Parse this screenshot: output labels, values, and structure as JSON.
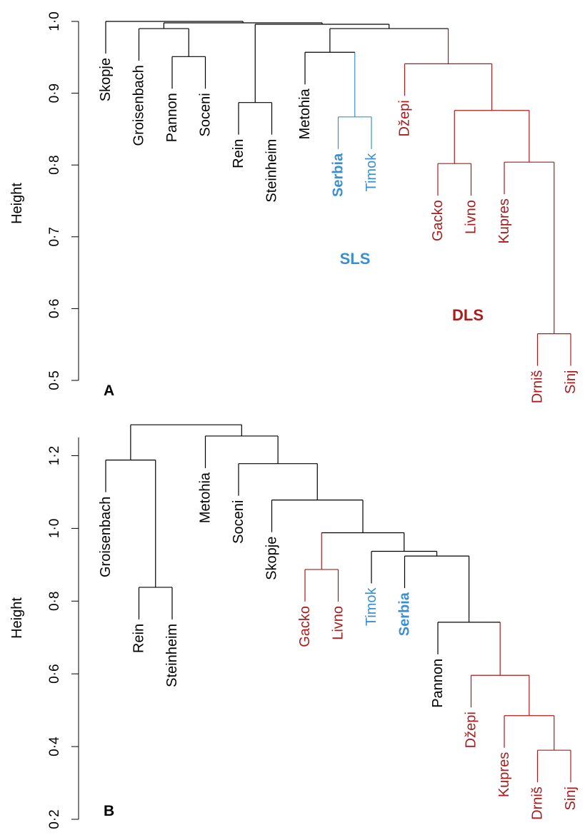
{
  "colors": {
    "default": "#000000",
    "SLS": "#3a8fd0",
    "DLS": "#a81c1c"
  },
  "chart_data": [
    {
      "type": "dendrogram",
      "panel_label": "A",
      "ylabel": "Height",
      "ylim": [
        0.45,
        1.0
      ],
      "yticks": [
        "0·5",
        "0·6",
        "0·7",
        "0·8",
        "0·9",
        "1·0"
      ],
      "ytick_values": [
        0.5,
        0.6,
        0.7,
        0.8,
        0.9,
        1.0
      ],
      "leaves": [
        {
          "name": "Skopje",
          "group": "default",
          "bold": false
        },
        {
          "name": "Groisenbach",
          "group": "default",
          "bold": false
        },
        {
          "name": "Pannon",
          "group": "default",
          "bold": false
        },
        {
          "name": "Soceni",
          "group": "default",
          "bold": false
        },
        {
          "name": "Rein",
          "group": "default",
          "bold": false
        },
        {
          "name": "Steinheim",
          "group": "default",
          "bold": false
        },
        {
          "name": "Metohia",
          "group": "default",
          "bold": false
        },
        {
          "name": "Serbia",
          "group": "SLS",
          "bold": true
        },
        {
          "name": "Timok",
          "group": "SLS",
          "bold": false
        },
        {
          "name": "Džepi",
          "group": "DLS",
          "bold": false
        },
        {
          "name": "Gacko",
          "group": "DLS",
          "bold": false
        },
        {
          "name": "Livno",
          "group": "DLS",
          "bold": false
        },
        {
          "name": "Kupres",
          "group": "DLS",
          "bold": false
        },
        {
          "name": "Drniš",
          "group": "DLS",
          "bold": false
        },
        {
          "name": "Sinj",
          "group": "DLS",
          "bold": false
        }
      ],
      "merges": [
        {
          "id": "a1",
          "children": [
            "Pannon",
            "Soceni"
          ],
          "height": 0.951,
          "group": "default"
        },
        {
          "id": "a2",
          "children": [
            "Groisenbach",
            "a1"
          ],
          "height": 0.99,
          "group": "default"
        },
        {
          "id": "a3",
          "children": [
            "Rein",
            "Steinheim"
          ],
          "height": 0.887,
          "group": "default"
        },
        {
          "id": "a4",
          "children": [
            "Serbia",
            "Timok"
          ],
          "height": 0.867,
          "group": "SLS"
        },
        {
          "id": "a5",
          "children": [
            "Metohia",
            "a4"
          ],
          "height": 0.957,
          "group": "default"
        },
        {
          "id": "a6",
          "children": [
            "Gacko",
            "Livno"
          ],
          "height": 0.802,
          "group": "DLS"
        },
        {
          "id": "a7",
          "children": [
            "Drniš",
            "Sinj"
          ],
          "height": 0.565,
          "group": "DLS"
        },
        {
          "id": "a8",
          "children": [
            "Kupres",
            "a7"
          ],
          "height": 0.804,
          "group": "DLS"
        },
        {
          "id": "a9",
          "children": [
            "a6",
            "a8"
          ],
          "height": 0.876,
          "group": "DLS"
        },
        {
          "id": "a10",
          "children": [
            "Džepi",
            "a9"
          ],
          "height": 0.941,
          "group": "DLS"
        },
        {
          "id": "a11",
          "children": [
            "a5",
            "a10"
          ],
          "height": 0.99,
          "group": "default"
        },
        {
          "id": "a12",
          "children": [
            "a3",
            "a11"
          ],
          "height": 0.996,
          "group": "default"
        },
        {
          "id": "a13",
          "children": [
            "a2",
            "a12"
          ],
          "height": 0.998,
          "group": "default"
        },
        {
          "id": "a14",
          "children": [
            "Skopje",
            "a13"
          ],
          "height": 1.0,
          "group": "default"
        }
      ],
      "annotations": [
        {
          "text": "SLS",
          "group": "SLS",
          "bold": true
        },
        {
          "text": "DLS",
          "group": "DLS",
          "bold": true
        }
      ]
    },
    {
      "type": "dendrogram",
      "panel_label": "B",
      "ylabel": "Height",
      "ylim": [
        0.15,
        1.3
      ],
      "yticks": [
        "0·2",
        "0·4",
        "0·6",
        "0·8",
        "1·0",
        "1·2"
      ],
      "ytick_values": [
        0.2,
        0.4,
        0.6,
        0.8,
        1.0,
        1.2
      ],
      "leaves": [
        {
          "name": "Groisenbach",
          "group": "default",
          "bold": false
        },
        {
          "name": "Rein",
          "group": "default",
          "bold": false
        },
        {
          "name": "Steinheim",
          "group": "default",
          "bold": false
        },
        {
          "name": "Metohia",
          "group": "default",
          "bold": false
        },
        {
          "name": "Soceni",
          "group": "default",
          "bold": false
        },
        {
          "name": "Skopje",
          "group": "default",
          "bold": false
        },
        {
          "name": "Gacko",
          "group": "DLS",
          "bold": false
        },
        {
          "name": "Livno",
          "group": "DLS",
          "bold": false
        },
        {
          "name": "Timok",
          "group": "SLS",
          "bold": false
        },
        {
          "name": "Serbia",
          "group": "SLS",
          "bold": true
        },
        {
          "name": "Pannon",
          "group": "default",
          "bold": false
        },
        {
          "name": "Džepi",
          "group": "DLS",
          "bold": false
        },
        {
          "name": "Kupres",
          "group": "DLS",
          "bold": false
        },
        {
          "name": "Drniš",
          "group": "DLS",
          "bold": false
        },
        {
          "name": "Sinj",
          "group": "DLS",
          "bold": false
        }
      ],
      "merges": [
        {
          "id": "b1",
          "children": [
            "Rein",
            "Steinheim"
          ],
          "height": 0.838,
          "group": "default"
        },
        {
          "id": "b2",
          "children": [
            "Groisenbach",
            "b1"
          ],
          "height": 1.188,
          "group": "default"
        },
        {
          "id": "b3",
          "children": [
            "Drniš",
            "Sinj"
          ],
          "height": 0.39,
          "group": "DLS"
        },
        {
          "id": "b4",
          "children": [
            "Kupres",
            "b3"
          ],
          "height": 0.485,
          "group": "DLS"
        },
        {
          "id": "b5",
          "children": [
            "Džepi",
            "b4"
          ],
          "height": 0.596,
          "group": "DLS"
        },
        {
          "id": "b6",
          "children": [
            "Pannon",
            "b5"
          ],
          "height": 0.742,
          "group": "default"
        },
        {
          "id": "b7",
          "children": [
            "Serbia",
            "b6"
          ],
          "height": 0.924,
          "group": "default"
        },
        {
          "id": "b8",
          "children": [
            "Timok",
            "b7"
          ],
          "height": 0.937,
          "group": "default"
        },
        {
          "id": "b9",
          "children": [
            "Gacko",
            "Livno"
          ],
          "height": 0.887,
          "group": "DLS"
        },
        {
          "id": "b10",
          "children": [
            "b9",
            "b8"
          ],
          "height": 0.988,
          "group": "default"
        },
        {
          "id": "b11",
          "children": [
            "Skopje",
            "b10"
          ],
          "height": 1.078,
          "group": "default"
        },
        {
          "id": "b12",
          "children": [
            "Soceni",
            "b11"
          ],
          "height": 1.178,
          "group": "default"
        },
        {
          "id": "b13",
          "children": [
            "Metohia",
            "b12"
          ],
          "height": 1.254,
          "group": "default"
        },
        {
          "id": "b14",
          "children": [
            "b2",
            "b13"
          ],
          "height": 1.285,
          "group": "default"
        }
      ],
      "annotations": []
    }
  ]
}
